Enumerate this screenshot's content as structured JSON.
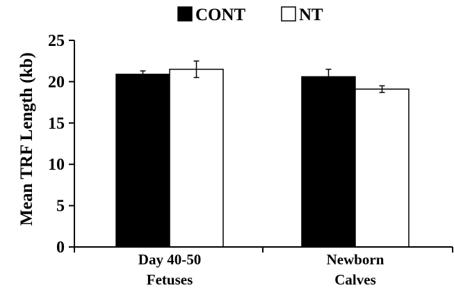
{
  "chart_data": {
    "type": "bar",
    "title": "",
    "xlabel": "",
    "ylabel": "Mean TRF Length (kb)",
    "categories": [
      [
        "Day 40-50",
        "Fetuses"
      ],
      [
        "Newborn",
        "Calves"
      ]
    ],
    "series": [
      {
        "name": "CONT",
        "values": [
          20.9,
          20.6
        ],
        "errors": [
          0.4,
          0.9
        ],
        "color": "#000000"
      },
      {
        "name": "NT",
        "values": [
          21.5,
          19.1
        ],
        "errors": [
          1.0,
          0.4
        ],
        "color": "#ffffff"
      }
    ],
    "ylim": [
      0,
      25
    ],
    "yticks": [
      "0",
      "5",
      "10",
      "15",
      "20",
      "25"
    ],
    "grid": false,
    "legend": {
      "position": "top-center"
    },
    "error_bars": true
  }
}
